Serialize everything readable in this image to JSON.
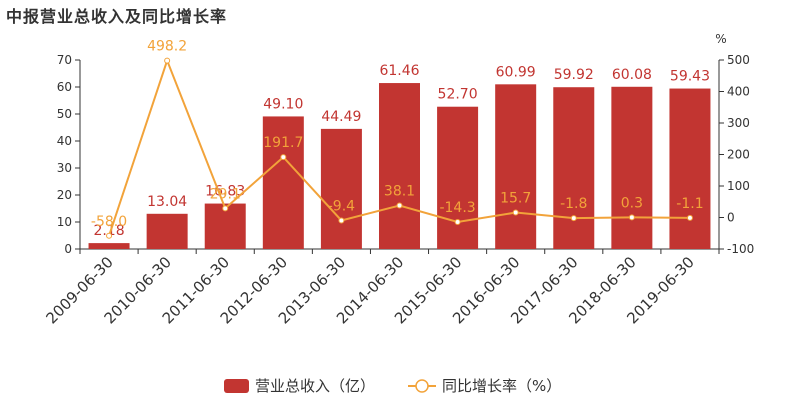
{
  "chart_data": {
    "type": "bar",
    "title": "中报营业总收入及同比增长率",
    "categories": [
      "2009-06-30",
      "2010-06-30",
      "2011-06-30",
      "2012-06-30",
      "2013-06-30",
      "2014-06-30",
      "2015-06-30",
      "2016-06-30",
      "2017-06-30",
      "2018-06-30",
      "2019-06-30"
    ],
    "series": [
      {
        "name": "营业总收入（亿）",
        "type": "bar",
        "axis": "left",
        "values": [
          2.18,
          13.04,
          16.83,
          49.1,
          44.49,
          61.46,
          52.7,
          60.99,
          59.92,
          60.08,
          59.43
        ],
        "labels": [
          "2.18",
          "13.04",
          "16.83",
          "49.10",
          "44.49",
          "61.46",
          "52.70",
          "60.99",
          "59.92",
          "60.08",
          "59.43"
        ]
      },
      {
        "name": "同比增长率（%）",
        "type": "line",
        "axis": "right",
        "values": [
          -58.0,
          498.2,
          29.1,
          191.7,
          -9.4,
          38.1,
          -14.3,
          15.7,
          -1.8,
          0.3,
          -1.1
        ],
        "labels": [
          "-58.0",
          "498.2",
          "29.1",
          "191.7",
          "-9.4",
          "38.1",
          "-14.3",
          "15.7",
          "-1.8",
          "0.3",
          "-1.1"
        ]
      }
    ],
    "y_left": {
      "min": 0,
      "max": 70,
      "ticks": [
        "0",
        "10",
        "20",
        "30",
        "40",
        "50",
        "60",
        "70"
      ]
    },
    "y_right": {
      "min": -100,
      "max": 500,
      "unit": "%",
      "ticks": [
        "-100",
        "0",
        "100",
        "200",
        "300",
        "400",
        "500"
      ]
    },
    "grid": false,
    "legend_position": "bottom-center",
    "colors": {
      "bar": "#c23531",
      "line": "#f2a33a",
      "axis": "#333333"
    }
  }
}
